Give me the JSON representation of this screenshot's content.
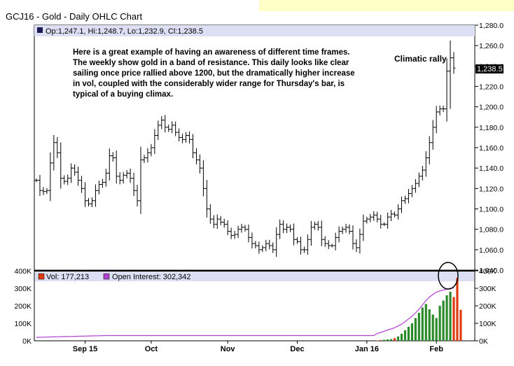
{
  "header": {
    "title": "GCJ16 - Gold - Daily OHLC Chart",
    "ohlc_readout": "Op:1,247.1, Hi:1,248.7, Lo:1,232.9, Cl:1,238.5",
    "last_price_tag": "1,238.5"
  },
  "annotations": {
    "commentary": [
      "Here is a great example of having an awareness of different time frames.",
      "The weekly show gold in a band of resistance.  This daily looks like clear",
      "sailing once price rallied above 1200, but the dramatically higher increase",
      "in vol, coupled with the considerably wider range for Thursday's bar, is",
      "typical of a buying climax."
    ],
    "callout": "Climatic rally"
  },
  "volume_panel": {
    "vol_legend": "Vol: 177,213",
    "oi_legend": "Open Interest: 302,342"
  },
  "colors": {
    "up_volume": "#2a8a2a",
    "down_volume": "#e03a10",
    "open_interest": "#b040d0",
    "bars": "#000000",
    "legend_bar": "#dde0f5",
    "highlight": "#ffffc8"
  },
  "chart_data": {
    "type": "ohlc",
    "price_axis": {
      "ylim": [
        1040,
        1280
      ],
      "ticks": [
        "1,280.0",
        "1,260.0",
        "1,240.0",
        "1,220.0",
        "1,200.0",
        "1,180.0",
        "1,160.0",
        "1,140.0",
        "1,120.0",
        "1,100.0",
        "1,080.0",
        "1,060.0",
        "1,040.0"
      ]
    },
    "volume_axis": {
      "ylim": [
        0,
        400000
      ],
      "left_ticks": [
        "400K",
        "300K",
        "200K",
        "100K",
        "0K"
      ],
      "right_ticks": [
        "400K",
        "300K",
        "200K",
        "100K",
        "0K"
      ]
    },
    "x_labels": [
      {
        "label": "Sep 15",
        "index": 14
      },
      {
        "label": "Oct",
        "index": 33
      },
      {
        "label": "Nov",
        "index": 55
      },
      {
        "label": "Dec",
        "index": 75
      },
      {
        "label": "Jan 16",
        "index": 95
      },
      {
        "label": "Feb",
        "index": 115
      }
    ],
    "series": [
      {
        "values": [
          1128,
          1118,
          1117,
          1118,
          1145,
          1165,
          1155,
          1130,
          1127,
          1130,
          1140,
          1136,
          1128,
          1120,
          1108,
          1105,
          1108,
          1118,
          1124,
          1126,
          1135,
          1152,
          1150,
          1132,
          1128,
          1133,
          1135,
          1130,
          1118,
          1108,
          1148,
          1150,
          1155,
          1160,
          1172,
          1182,
          1187,
          1180,
          1178,
          1182,
          1175,
          1170,
          1168,
          1172,
          1168,
          1155,
          1148,
          1140,
          1120,
          1100,
          1090,
          1085,
          1090,
          1087,
          1085,
          1078,
          1074,
          1075,
          1080,
          1082,
          1080,
          1072,
          1066,
          1064,
          1060,
          1062,
          1066,
          1064,
          1060,
          1075,
          1085,
          1080,
          1082,
          1080,
          1070,
          1068,
          1060,
          1060,
          1070,
          1082,
          1085,
          1082,
          1070,
          1066,
          1064,
          1064,
          1072,
          1078,
          1080,
          1082,
          1078,
          1066,
          1062,
          1075,
          1088,
          1090,
          1092,
          1094,
          1090,
          1085,
          1085,
          1092,
          1095,
          1094,
          1100,
          1108,
          1110,
          1115,
          1120,
          1125,
          1132,
          1138,
          1150,
          1165,
          1180,
          1195,
          1198,
          1198,
          1235,
          1248,
          1238
        ]
      },
      {
        "name": "Vol: 177,213",
        "values": [
          0,
          0,
          0,
          0,
          0,
          0,
          0,
          0,
          0,
          0,
          0,
          0,
          0,
          0,
          0,
          0,
          0,
          0,
          0,
          0,
          0,
          0,
          0,
          0,
          0,
          0,
          0,
          0,
          0,
          0,
          0,
          0,
          0,
          0,
          0,
          0,
          0,
          0,
          0,
          0,
          0,
          0,
          0,
          0,
          0,
          0,
          0,
          0,
          0,
          0,
          0,
          0,
          0,
          0,
          0,
          0,
          0,
          0,
          0,
          0,
          0,
          0,
          0,
          0,
          0,
          0,
          0,
          0,
          0,
          0,
          0,
          0,
          0,
          0,
          0,
          0,
          0,
          0,
          0,
          0,
          0,
          0,
          0,
          0,
          0,
          0,
          0,
          0,
          0,
          0,
          0,
          0,
          0,
          0,
          0,
          0,
          0,
          0,
          2000,
          4000,
          6000,
          8000,
          10000,
          15000,
          25000,
          40000,
          60000,
          80000,
          100000,
          130000,
          160000,
          190000,
          210000,
          180000,
          150000,
          130000,
          200000,
          230000,
          260000,
          280000,
          250000,
          360000,
          177213
        ]
      },
      {
        "name": "Open Interest: 302,342",
        "values": [
          20000,
          20500,
          21000,
          21500,
          22000,
          22500,
          23000,
          23500,
          24000,
          24500,
          25000,
          25500,
          26000,
          26500,
          27000,
          27500,
          28000,
          28500,
          29000,
          29500,
          30000,
          30000,
          30000,
          30000,
          30000,
          30000,
          30000,
          30000,
          30000,
          30000,
          30000,
          30000,
          30000,
          30000,
          30000,
          30000,
          30000,
          30000,
          30000,
          30000,
          30000,
          30000,
          30000,
          30000,
          30000,
          30000,
          30000,
          30000,
          30000,
          30000,
          30000,
          30000,
          30000,
          30000,
          30000,
          30000,
          30000,
          30000,
          30000,
          30000,
          30000,
          30000,
          30000,
          30000,
          30000,
          30000,
          30000,
          30000,
          30000,
          30000,
          30000,
          30000,
          30000,
          30000,
          30000,
          30000,
          30000,
          30000,
          30000,
          30000,
          30000,
          30000,
          30000,
          30000,
          30000,
          30000,
          30000,
          30000,
          30000,
          30000,
          30000,
          30000,
          30000,
          30000,
          30000,
          30000,
          30000,
          30000,
          42000,
          48000,
          55000,
          62000,
          68000,
          75000,
          85000,
          95000,
          110000,
          125000,
          140000,
          160000,
          180000,
          205000,
          230000,
          250000,
          265000,
          278000,
          285000,
          290000,
          295000,
          300000,
          302342
        ]
      }
    ]
  }
}
